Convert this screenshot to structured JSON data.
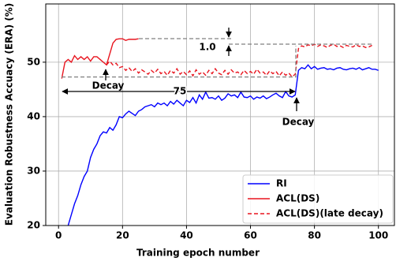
{
  "chart_data": {
    "type": "line",
    "x_label": "Training epoch number",
    "y_label": "Evaluation Robustness Accuacy (ERA) (%)",
    "xlim": [
      -4,
      105
    ],
    "ylim": [
      20,
      60.7
    ],
    "xticks": [
      0,
      20,
      40,
      60,
      80,
      100
    ],
    "yticks": [
      20,
      30,
      40,
      50
    ],
    "grid": true,
    "legend": "lower right",
    "annotations": [
      "1.0",
      "Decay",
      "75",
      "Decay"
    ],
    "series": [
      {
        "name": "RI",
        "color": "#0000ff",
        "linestyle": "solid",
        "x": [
          3,
          4,
          5,
          6,
          7,
          8,
          9,
          10,
          11,
          12,
          13,
          14,
          15,
          16,
          17,
          18,
          19,
          20,
          21,
          22,
          23,
          24,
          25,
          26,
          27,
          28,
          29,
          30,
          31,
          32,
          33,
          34,
          35,
          36,
          37,
          38,
          39,
          40,
          41,
          42,
          43,
          44,
          45,
          46,
          47,
          48,
          49,
          50,
          51,
          52,
          53,
          54,
          55,
          56,
          57,
          58,
          59,
          60,
          61,
          62,
          63,
          64,
          65,
          66,
          67,
          68,
          69,
          70,
          71,
          72,
          73,
          74,
          75,
          76,
          77,
          78,
          79,
          80,
          81,
          82,
          83,
          84,
          85,
          86,
          87,
          88,
          89,
          90,
          91,
          92,
          93,
          94,
          95,
          96,
          97,
          98,
          99,
          100
        ],
        "values": [
          20,
          22,
          24,
          25.5,
          27.5,
          29,
          30,
          32.5,
          34,
          35,
          36.5,
          37.2,
          37,
          38,
          37.5,
          38.5,
          40,
          39.8,
          40.5,
          41,
          40.6,
          40.2,
          41,
          41.3,
          41.8,
          42,
          42.2,
          41.8,
          42.5,
          42.2,
          42.5,
          42,
          42.8,
          42.3,
          43,
          42.5,
          42,
          43,
          42.6,
          43.5,
          42.5,
          44,
          43.2,
          44.5,
          43.4,
          43.5,
          43.2,
          43.8,
          43,
          43.4,
          44.2,
          43.8,
          44,
          43.5,
          44.5,
          43.6,
          43.5,
          43.8,
          43.2,
          43.6,
          43.4,
          43.8,
          43.3,
          43.6,
          44,
          44.3,
          43.8,
          43.5,
          44.6,
          43.8,
          43.6,
          44,
          48.5,
          49,
          48.8,
          49.5,
          48.8,
          49.2,
          48.7,
          48.9,
          49,
          48.7,
          48.8,
          48.6,
          48.9,
          49,
          48.7,
          48.6,
          48.8,
          48.9,
          48.7,
          49,
          48.6,
          48.8,
          49,
          48.7,
          48.7,
          48.5
        ]
      },
      {
        "name": "ACL(DS)",
        "color": "#e8141e",
        "linestyle": "solid",
        "x": [
          1,
          2,
          3,
          4,
          5,
          6,
          7,
          8,
          9,
          10,
          11,
          12,
          13,
          14,
          15,
          16,
          17,
          18,
          19,
          20,
          21,
          22,
          23,
          24,
          25
        ],
        "values": [
          47,
          50,
          50.5,
          50,
          51.2,
          50.5,
          51,
          50.5,
          51,
          50.2,
          51,
          51,
          50.5,
          50,
          49.5,
          51.5,
          53.5,
          54.2,
          54.3,
          54.3,
          54,
          54.2,
          54.2,
          54.2,
          54.3
        ]
      },
      {
        "name": "ACL(DS)(late decay)",
        "color": "#e8141e",
        "linestyle": "dashed",
        "x": [
          15,
          16,
          17,
          18,
          19,
          20,
          21,
          22,
          23,
          24,
          25,
          26,
          27,
          28,
          29,
          30,
          31,
          32,
          33,
          34,
          35,
          36,
          37,
          38,
          39,
          40,
          41,
          42,
          43,
          44,
          45,
          46,
          47,
          48,
          49,
          50,
          51,
          52,
          53,
          54,
          55,
          56,
          57,
          58,
          59,
          60,
          61,
          62,
          63,
          64,
          65,
          66,
          67,
          68,
          69,
          70,
          71,
          72,
          73,
          74,
          75,
          76,
          77,
          78,
          79,
          80,
          81,
          82,
          83,
          84,
          85,
          86,
          87,
          88,
          89,
          90,
          91,
          92,
          93,
          94,
          95,
          96,
          97,
          98
        ],
        "values": [
          49.5,
          50.2,
          49.5,
          49.8,
          49,
          49.2,
          48.5,
          49,
          48.3,
          48.8,
          48,
          48.6,
          48.2,
          47.8,
          48.5,
          48,
          48.7,
          47.9,
          48.3,
          47.6,
          48.5,
          48,
          48.8,
          47.8,
          48.3,
          47.7,
          48.4,
          47.5,
          48.6,
          47.8,
          48.2,
          47.6,
          48.5,
          47.9,
          48.8,
          48,
          47.7,
          48.5,
          47.8,
          48.6,
          48,
          48.2,
          47.7,
          48.5,
          47.9,
          48.3,
          47.8,
          48.7,
          48,
          48.2,
          47.6,
          48.4,
          47.9,
          48.3,
          47.5,
          48.2,
          47.6,
          48,
          47.3,
          47.8,
          52.5,
          53,
          52.8,
          53.2,
          53,
          53.3,
          52.9,
          53.2,
          53,
          52.7,
          53.1,
          53.3,
          52.9,
          53,
          52.7,
          53.1,
          52.9,
          52.8,
          53.2,
          52.9,
          53,
          52.7,
          52.8,
          53.1
        ]
      }
    ]
  }
}
